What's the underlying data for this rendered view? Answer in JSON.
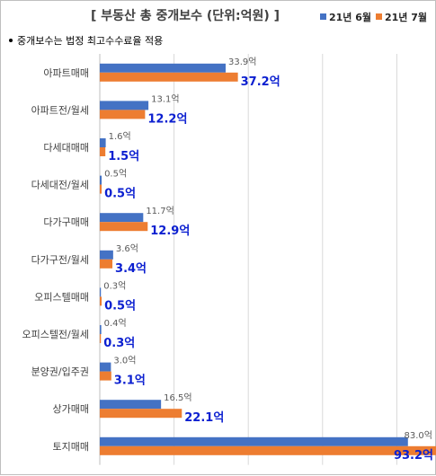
{
  "chart_data": {
    "type": "bar",
    "orientation": "horizontal",
    "title": "[ 부동산 총 중개보수 (단위:억원) ]",
    "note": "중개보수는 법정 최고수수료율 적용",
    "unit_suffix": "억",
    "categories": [
      "아파트매매",
      "아파트전/월세",
      "다세대매매",
      "다세대전/월세",
      "다가구매매",
      "다가구전/월세",
      "오피스텔매매",
      "오피스텔전/월세",
      "분양권/입주권",
      "상가매매",
      "토지매매"
    ],
    "series": [
      {
        "name": "21년 6월",
        "color": "#4472c4",
        "values": [
          33.9,
          13.1,
          1.6,
          0.5,
          11.7,
          3.6,
          0.3,
          0.4,
          3.0,
          16.5,
          83.0
        ]
      },
      {
        "name": "21년 7월",
        "color": "#ed7d31",
        "values": [
          37.2,
          12.2,
          1.5,
          0.5,
          12.9,
          3.4,
          0.5,
          0.3,
          3.1,
          22.1,
          93.2
        ]
      }
    ],
    "xlim": [
      0,
      95
    ],
    "grid": true,
    "legend_position": "top-right",
    "grid_color": "#d9d9d9",
    "axis_color": "#bfbfbf",
    "label_color_series2": "#0b1fd0"
  }
}
